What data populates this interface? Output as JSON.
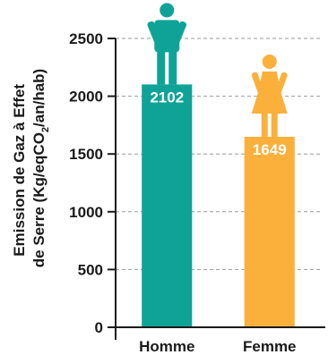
{
  "chart_data": {
    "type": "bar",
    "categories": [
      "Homme",
      "Femme"
    ],
    "values": [
      2102,
      1649
    ],
    "data_labels": [
      "2102",
      "1649"
    ],
    "colors": [
      "#0fa397",
      "#fbb03b"
    ],
    "icons": [
      "man-icon",
      "woman-icon"
    ],
    "ylabel_line1": "Emission de Gaz à Effet",
    "ylabel_line2_pre": "de Serre (Kg/eqCO",
    "ylabel_line2_sub": "2",
    "ylabel_line2_post": "/an/hab)",
    "ylim": [
      0,
      2500
    ],
    "yticks": [
      0,
      500,
      1000,
      1500,
      2000,
      2500
    ],
    "ytick_labels": [
      "0",
      "500",
      "1000",
      "1500",
      "2000",
      "2500"
    ],
    "grid": true,
    "legend": "none"
  }
}
